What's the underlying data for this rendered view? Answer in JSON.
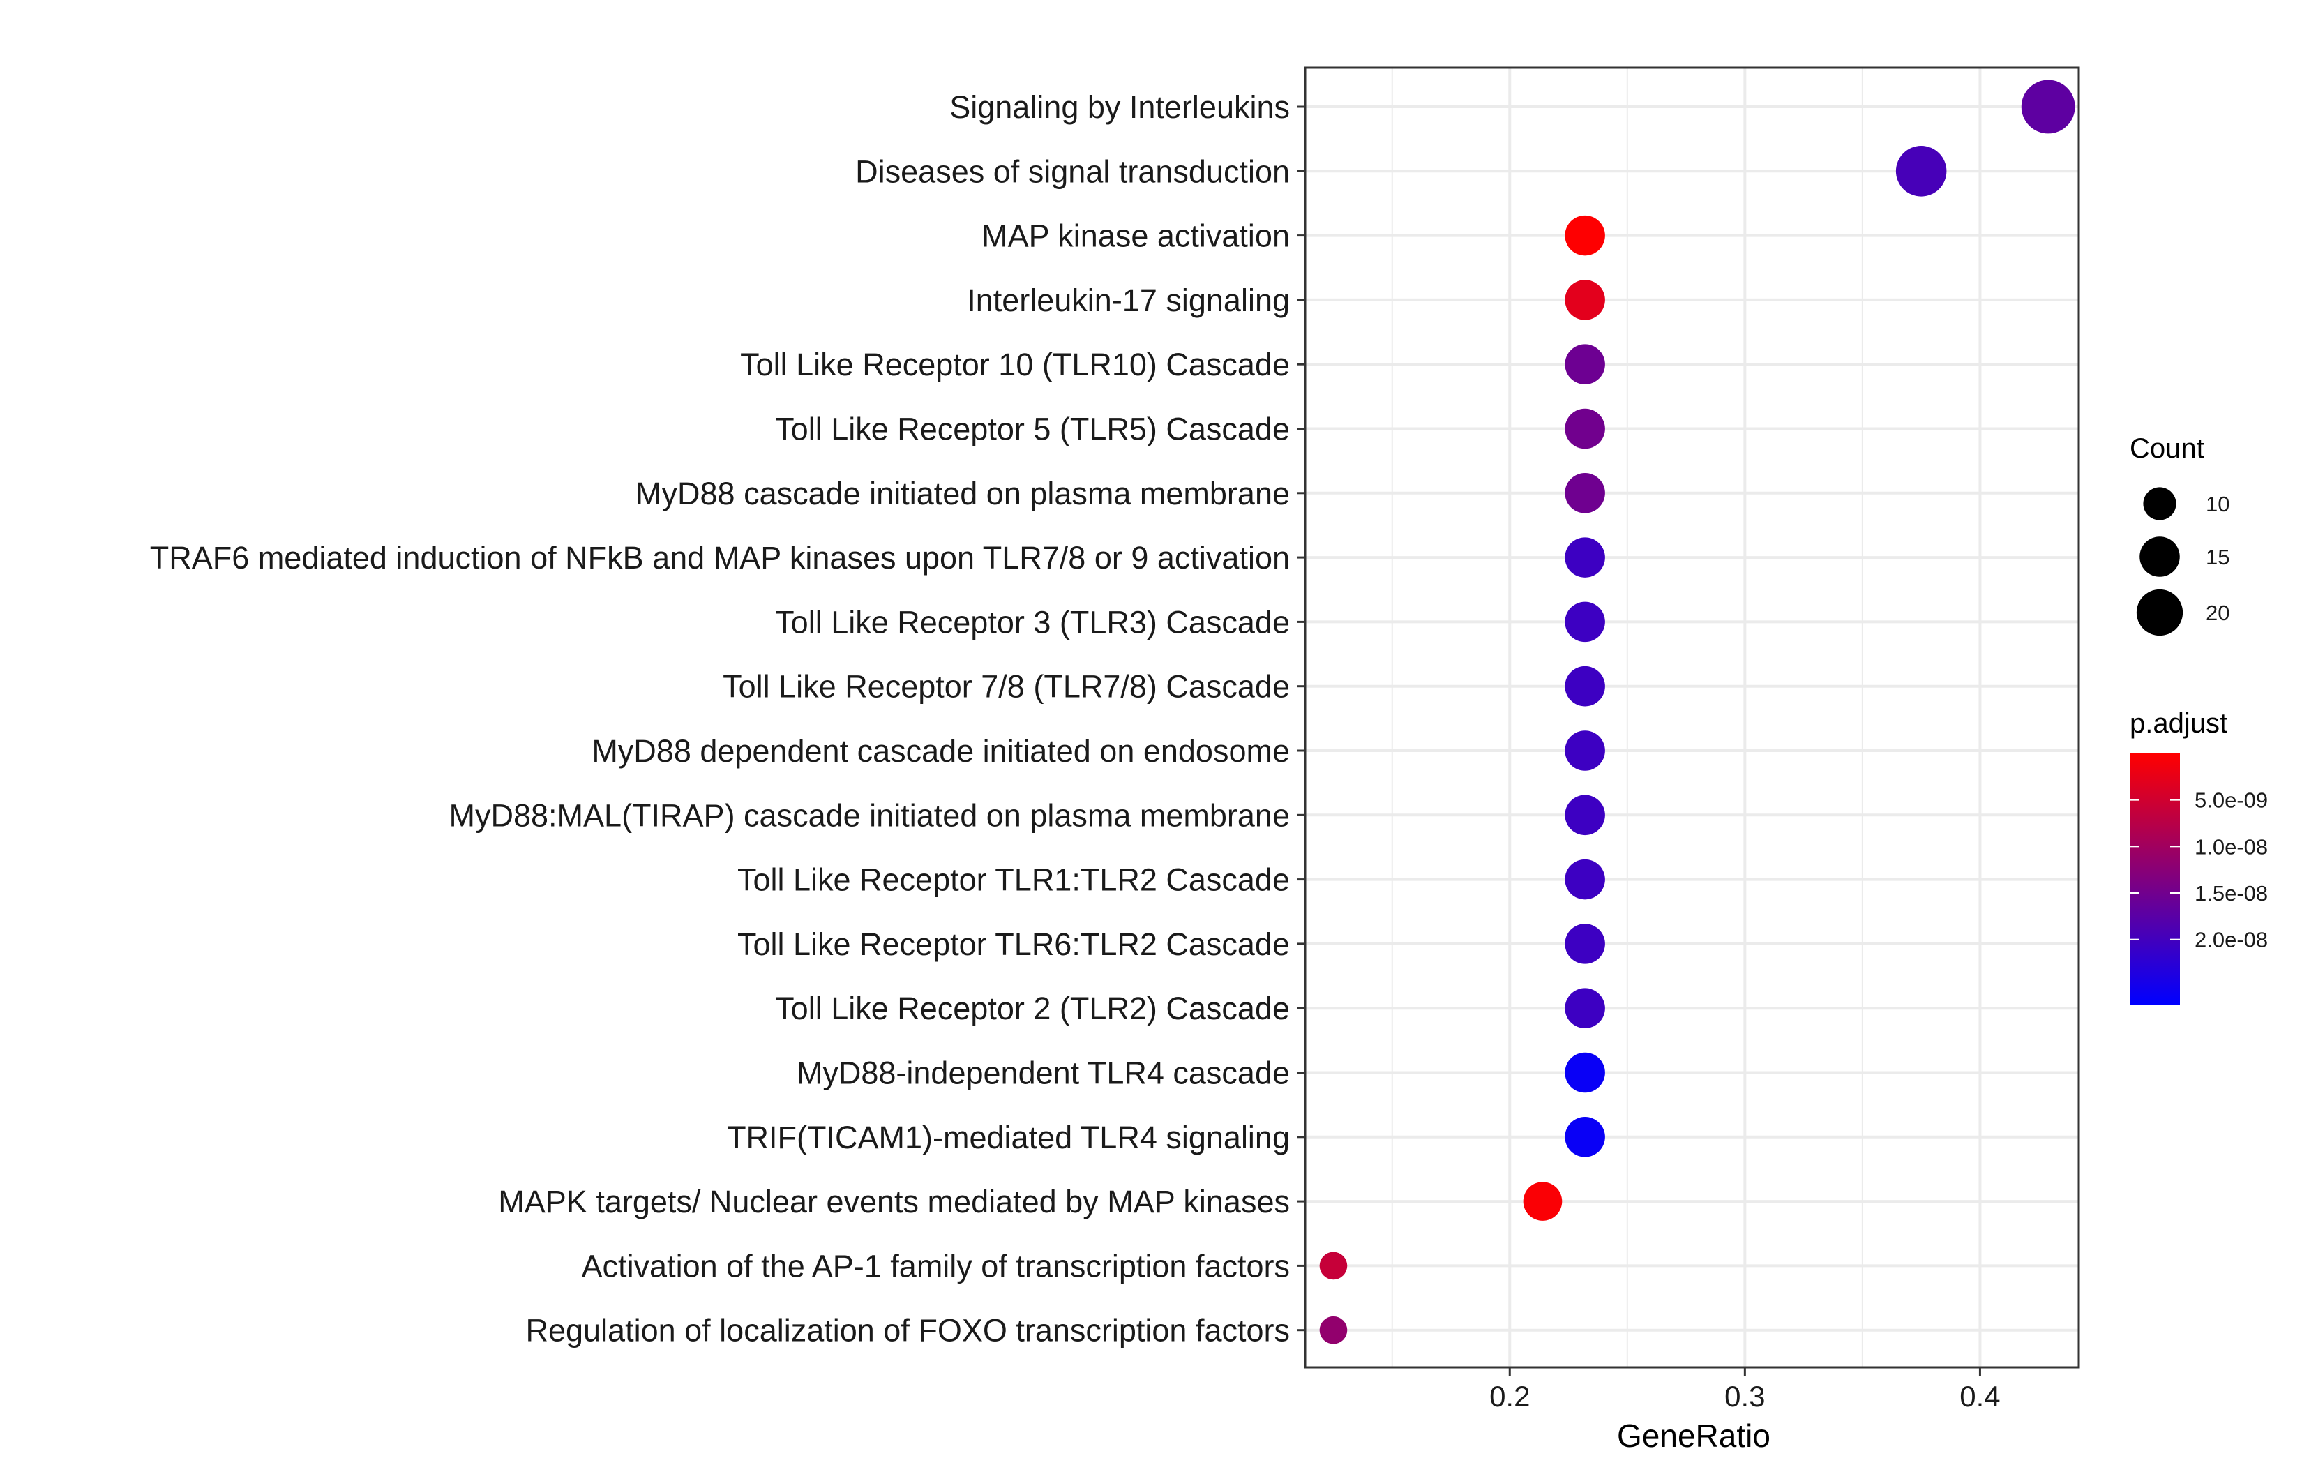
{
  "chart_data": {
    "type": "scatter",
    "xlabel": "GeneRatio",
    "ylabel": "",
    "xlim": [
      0.113,
      0.442
    ],
    "x_ticks": [
      0.2,
      0.3,
      0.4
    ],
    "x_tick_labels": [
      "0.2",
      "0.3",
      "0.4"
    ],
    "grid": true,
    "legend_position": "right",
    "colors": {
      "low": "#0000ff",
      "high": "#ff0000",
      "grid": "#ebebeb",
      "border": "#333333"
    },
    "points": [
      {
        "label": "Signaling by Interleukins",
        "x": 0.429,
        "count": 27,
        "p_adjust": 1.7e-08
      },
      {
        "label": "Diseases of signal transduction",
        "x": 0.375,
        "count": 24,
        "p_adjust": 1.95e-08
      },
      {
        "label": "MAP kinase activation",
        "x": 0.232,
        "count": 15,
        "p_adjust": 1e-10
      },
      {
        "label": "Interleukin-17 signaling",
        "x": 0.232,
        "count": 15,
        "p_adjust": 3e-09
      },
      {
        "label": "Toll Like Receptor 10 (TLR10) Cascade",
        "x": 0.232,
        "count": 15,
        "p_adjust": 1.55e-08
      },
      {
        "label": "Toll Like Receptor 5 (TLR5) Cascade",
        "x": 0.232,
        "count": 15,
        "p_adjust": 1.5e-08
      },
      {
        "label": "MyD88 cascade initiated on plasma membrane",
        "x": 0.232,
        "count": 15,
        "p_adjust": 1.52e-08
      },
      {
        "label": "TRAF6 mediated induction of NFkB and MAP kinases upon TLR7/8 or 9 activation",
        "x": 0.232,
        "count": 15,
        "p_adjust": 2.05e-08
      },
      {
        "label": "Toll Like Receptor 3 (TLR3) Cascade",
        "x": 0.232,
        "count": 15,
        "p_adjust": 2.05e-08
      },
      {
        "label": "Toll Like Receptor 7/8 (TLR7/8) Cascade",
        "x": 0.232,
        "count": 15,
        "p_adjust": 2.05e-08
      },
      {
        "label": "MyD88 dependent cascade initiated on endosome",
        "x": 0.232,
        "count": 15,
        "p_adjust": 2.05e-08
      },
      {
        "label": "MyD88:MAL(TIRAP) cascade initiated on plasma membrane",
        "x": 0.232,
        "count": 15,
        "p_adjust": 2.05e-08
      },
      {
        "label": "Toll Like Receptor TLR1:TLR2 Cascade",
        "x": 0.232,
        "count": 15,
        "p_adjust": 2.05e-08
      },
      {
        "label": "Toll Like Receptor TLR6:TLR2 Cascade",
        "x": 0.232,
        "count": 15,
        "p_adjust": 2.05e-08
      },
      {
        "label": "Toll Like Receptor 2 (TLR2) Cascade",
        "x": 0.232,
        "count": 15,
        "p_adjust": 2.05e-08
      },
      {
        "label": "MyD88-independent TLR4 cascade ",
        "x": 0.232,
        "count": 15,
        "p_adjust": 2.6e-08
      },
      {
        "label": "TRIF(TICAM1)-mediated TLR4 signaling ",
        "x": 0.232,
        "count": 15,
        "p_adjust": 2.6e-08
      },
      {
        "label": "MAPK targets/ Nuclear events mediated by MAP kinases",
        "x": 0.214,
        "count": 14,
        "p_adjust": 5e-10
      },
      {
        "label": "Activation of the AP-1 family of transcription factors",
        "x": 0.125,
        "count": 7,
        "p_adjust": 6e-09
      },
      {
        "label": "Regulation of localization of FOXO transcription factors",
        "x": 0.125,
        "count": 7,
        "p_adjust": 1.15e-08
      }
    ],
    "size_legend": {
      "title": "Count",
      "values": [
        10,
        15,
        20
      ],
      "labels": [
        "10",
        "15",
        "20"
      ]
    },
    "color_legend": {
      "title": "p.adjust",
      "range": [
        0.0,
        2.7e-08
      ],
      "ticks": [
        5e-09,
        1e-08,
        1.5e-08,
        2e-08
      ],
      "labels": [
        "5.0e-09",
        "1.0e-08",
        "1.5e-08",
        "2.0e-08"
      ]
    }
  }
}
